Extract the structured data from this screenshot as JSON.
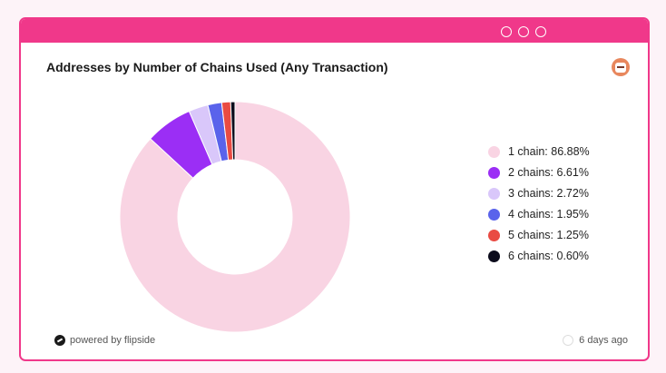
{
  "window": {
    "title": "Addresses by Number of Chains Used (Any Transaction)"
  },
  "footer": {
    "powered_by": "powered by flipside",
    "updated": "6 days ago"
  },
  "colors": {
    "accent": "#f0388a"
  },
  "chart_data": {
    "type": "pie",
    "title": "Addresses by Number of Chains Used (Any Transaction)",
    "donut": true,
    "legend_position": "right",
    "series": [
      {
        "name": "1 chain",
        "value": 86.88,
        "label": "1 chain: 86.88%",
        "color": "#f9d4e3"
      },
      {
        "name": "2 chains",
        "value": 6.61,
        "label": "2 chains: 6.61%",
        "color": "#9b2ef5"
      },
      {
        "name": "3 chains",
        "value": 2.72,
        "label": "3 chains: 2.72%",
        "color": "#d9c7fa"
      },
      {
        "name": "4 chains",
        "value": 1.95,
        "label": "4 chains: 1.95%",
        "color": "#5a63eb"
      },
      {
        "name": "5 chains",
        "value": 1.25,
        "label": "5 chains: 1.25%",
        "color": "#e94b43"
      },
      {
        "name": "6 chains",
        "value": 0.6,
        "label": "6 chains: 0.60%",
        "color": "#0c0c1c"
      }
    ]
  }
}
